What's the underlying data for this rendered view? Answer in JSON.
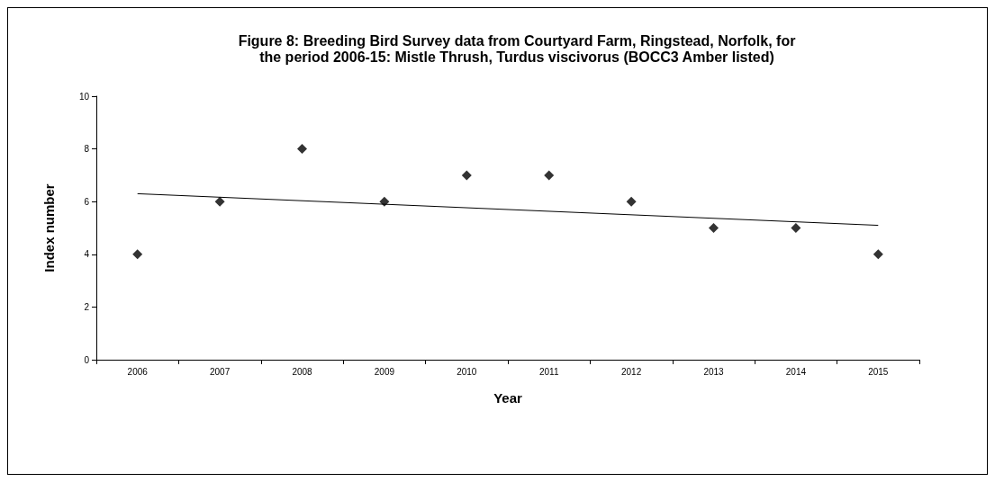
{
  "chart_data": {
    "type": "scatter",
    "title": "Figure 8: Breeding Bird Survey data from Courtyard Farm, Ringstead, Norfolk, for\nthe period 2006-15: Mistle Thrush, Turdus viscivorus (BOCC3 Amber listed)",
    "xlabel": "Year",
    "ylabel": "Index number",
    "categories": [
      "2006",
      "2007",
      "2008",
      "2009",
      "2010",
      "2011",
      "2012",
      "2013",
      "2014",
      "2015"
    ],
    "series": [
      {
        "color": "#000000",
        "marker": "diamond",
        "values": [
          4,
          6,
          8,
          6,
          7,
          7,
          6,
          5,
          5,
          4
        ]
      },
      {
        "type": "line",
        "color": "#000000",
        "marker": "none",
        "line_style": "solid",
        "values": [
          6.3,
          null,
          null,
          null,
          null,
          null,
          null,
          null,
          null,
          5.1
        ]
      }
    ],
    "ylim": [
      0,
      10
    ],
    "yticks": [
      0,
      2,
      4,
      6,
      8,
      10
    ],
    "grid": false
  }
}
